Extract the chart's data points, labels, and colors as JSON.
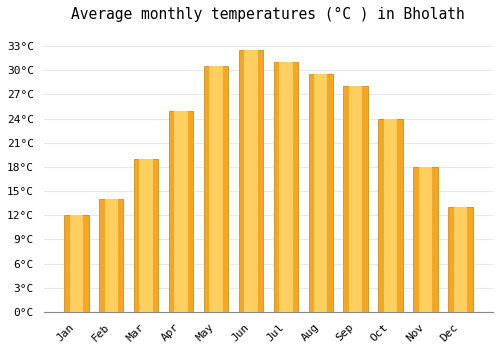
{
  "title": "Average monthly temperatures (°C ) in Bholath",
  "months": [
    "Jan",
    "Feb",
    "Mar",
    "Apr",
    "May",
    "Jun",
    "Jul",
    "Aug",
    "Sep",
    "Oct",
    "Nov",
    "Dec"
  ],
  "temperatures": [
    12,
    14,
    19,
    25,
    30.5,
    32.5,
    31,
    29.5,
    28,
    24,
    18,
    13
  ],
  "bar_color_outer": "#F5A623",
  "bar_color_inner": "#FFD060",
  "background_color": "#FFFFFF",
  "plot_bg_color": "#FFFFFF",
  "grid_color": "#E8E8E8",
  "ylim": [
    0,
    35
  ],
  "yticks": [
    0,
    3,
    6,
    9,
    12,
    15,
    18,
    21,
    24,
    27,
    30,
    33
  ],
  "ytick_labels": [
    "0°C",
    "3°C",
    "6°C",
    "9°C",
    "12°C",
    "15°C",
    "18°C",
    "21°C",
    "24°C",
    "27°C",
    "30°C",
    "33°C"
  ],
  "title_fontsize": 10.5,
  "tick_fontsize": 8,
  "font_family": "monospace",
  "bar_width": 0.7,
  "bar_edge_color": "#C8820A",
  "bar_edge_linewidth": 0.5
}
